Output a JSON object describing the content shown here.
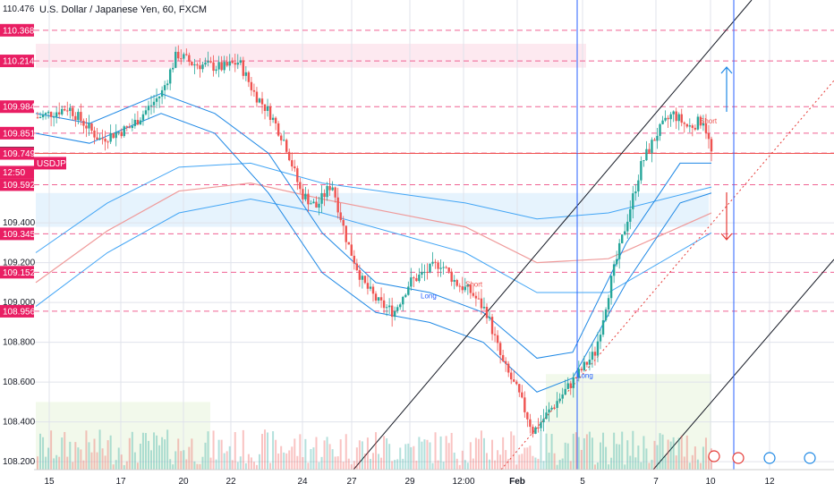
{
  "header": {
    "title": "U.S. Dollar / Japanese Yen, 60, FXCM"
  },
  "colors": {
    "up": "#26a69a",
    "down": "#ef5350",
    "accent_red": "#e91e63",
    "level_line": "#f06292",
    "band": "#2962ff",
    "grid": "#e0e3eb",
    "symbol_label": "#e91e63"
  },
  "chart_data": {
    "type": "candlestick",
    "symbol": "USDJPY",
    "interval": "60",
    "source": "FXCM",
    "ylim": [
      108.16,
      110.52
    ],
    "y_ticks": [
      "108.200",
      "108.400",
      "108.600",
      "108.800",
      "109.000",
      "109.200",
      "109.400",
      "110.476"
    ],
    "x_ticks": [
      "15",
      "17",
      "20",
      "22",
      "24",
      "27",
      "29",
      "12:00",
      "Feb",
      "5",
      "7",
      "10",
      "12"
    ],
    "highlighted_levels": [
      {
        "label": "110.368",
        "value": 110.368
      },
      {
        "label": "110.214",
        "value": 110.214
      },
      {
        "label": "109.984",
        "value": 109.984
      },
      {
        "label": "109.851",
        "value": 109.851
      },
      {
        "label": "109.751",
        "value": 109.751
      },
      {
        "label": "109.749",
        "value": 109.749
      },
      {
        "label": "109.592",
        "value": 109.592
      },
      {
        "label": "109.345",
        "value": 109.345
      },
      {
        "label": "109.152",
        "value": 109.152
      },
      {
        "label": "108.956",
        "value": 108.956
      }
    ],
    "symbol_label": "USDJPY",
    "countdown_label": "12:50",
    "price_path": [
      [
        0,
        109.93
      ],
      [
        4,
        109.98
      ],
      [
        8,
        109.82
      ],
      [
        12,
        109.88
      ],
      [
        16,
        110.05
      ],
      [
        18,
        110.25
      ],
      [
        20,
        110.2
      ],
      [
        24,
        110.18
      ],
      [
        26,
        110.21
      ],
      [
        28,
        110.05
      ],
      [
        30,
        109.95
      ],
      [
        32,
        109.8
      ],
      [
        34,
        109.55
      ],
      [
        36,
        109.48
      ],
      [
        38,
        109.6
      ],
      [
        40,
        109.3
      ],
      [
        42,
        109.1
      ],
      [
        44,
        109.0
      ],
      [
        46,
        108.95
      ],
      [
        48,
        109.1
      ],
      [
        50,
        109.15
      ],
      [
        52,
        109.2
      ],
      [
        54,
        109.1
      ],
      [
        56,
        109.05
      ],
      [
        58,
        108.95
      ],
      [
        60,
        108.7
      ],
      [
        62,
        108.55
      ],
      [
        64,
        108.35
      ],
      [
        66,
        108.45
      ],
      [
        68,
        108.55
      ],
      [
        70,
        108.65
      ],
      [
        72,
        108.75
      ],
      [
        74,
        109.1
      ],
      [
        76,
        109.4
      ],
      [
        78,
        109.7
      ],
      [
        80,
        109.85
      ],
      [
        82,
        109.95
      ],
      [
        84,
        109.88
      ],
      [
        86,
        109.92
      ],
      [
        87,
        109.75
      ]
    ],
    "annotations": [
      {
        "text": "Short",
        "value": 109.9
      },
      {
        "text": "Long",
        "value": 109.02
      },
      {
        "text": "Short",
        "value": 109.08
      },
      {
        "text": "Long",
        "value": 108.62
      }
    ]
  }
}
